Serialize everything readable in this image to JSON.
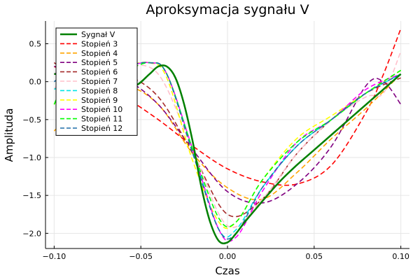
{
  "chart_data": {
    "type": "line",
    "title": "Aproksymacja sygnału V",
    "xlabel": "Czas",
    "ylabel": "Amplituda",
    "xlim": [
      -0.105,
      0.105
    ],
    "ylim": [
      -2.2,
      0.8
    ],
    "xticks": [
      -0.1,
      -0.05,
      0.0,
      0.05,
      0.1
    ],
    "xtick_labels": [
      "−0.10",
      "−0.05",
      "0.00",
      "0.05",
      "0.10"
    ],
    "yticks": [
      0.5,
      0.0,
      -0.5,
      -1.0,
      -1.5,
      -2.0
    ],
    "ytick_labels": [
      "0.5",
      "0.0",
      "−0.5",
      "−1.0",
      "−1.5",
      "−2.0"
    ],
    "grid": true,
    "legend_position": "top-left",
    "series": [
      {
        "name": "Sygnał V",
        "color": "#008000",
        "dash": "solid",
        "x": [
          -0.1,
          -0.09,
          -0.08,
          -0.07,
          -0.06,
          -0.053,
          -0.045,
          -0.04,
          -0.035,
          -0.03,
          -0.025,
          -0.02,
          -0.015,
          -0.01,
          -0.005,
          0.0,
          0.005,
          0.01,
          0.02,
          0.03,
          0.04,
          0.05,
          0.06,
          0.07,
          0.08,
          0.09,
          0.1
        ],
        "y": [
          0.1,
          0.12,
          0.1,
          0.05,
          0.0,
          -0.05,
          0.1,
          0.2,
          0.2,
          0.05,
          -0.3,
          -0.8,
          -1.4,
          -1.85,
          -2.1,
          -2.12,
          -2.0,
          -1.85,
          -1.58,
          -1.32,
          -1.1,
          -0.9,
          -0.7,
          -0.5,
          -0.3,
          -0.1,
          0.1
        ]
      },
      {
        "name": "Stopień 3",
        "color": "#ff0000",
        "dash": "dashed",
        "x": [
          -0.1,
          -0.08,
          -0.06,
          -0.04,
          -0.02,
          0.0,
          0.02,
          0.04,
          0.06,
          0.08,
          0.09,
          0.1
        ],
        "y": [
          0.2,
          0.0,
          -0.2,
          -0.5,
          -0.85,
          -1.15,
          -1.32,
          -1.35,
          -1.1,
          -0.4,
          0.1,
          0.7
        ]
      },
      {
        "name": "Stopień 4",
        "color": "#ffa500",
        "dash": "dashed",
        "x": [
          -0.1,
          -0.08,
          -0.06,
          -0.04,
          -0.02,
          0.0,
          0.02,
          0.04,
          0.06,
          0.08,
          0.1
        ],
        "y": [
          -0.65,
          -0.2,
          -0.05,
          -0.3,
          -0.95,
          -1.4,
          -1.55,
          -1.2,
          -0.75,
          -0.35,
          0.1
        ]
      },
      {
        "name": "Stopień 5",
        "color": "#800080",
        "dash": "dashed",
        "x": [
          -0.1,
          -0.08,
          -0.06,
          -0.04,
          -0.02,
          0.0,
          0.02,
          0.04,
          0.06,
          0.08,
          0.09,
          0.1
        ],
        "y": [
          0.2,
          0.2,
          0.05,
          -0.3,
          -0.9,
          -1.45,
          -1.6,
          -1.35,
          -0.85,
          -0.05,
          0.0,
          -0.3
        ]
      },
      {
        "name": "Stopień 6",
        "color": "#a52a2a",
        "dash": "dashed",
        "x": [
          -0.1,
          -0.09,
          -0.08,
          -0.06,
          -0.04,
          -0.02,
          0.0,
          0.02,
          0.04,
          0.06,
          0.08,
          0.1
        ],
        "y": [
          0.25,
          0.1,
          0.15,
          0.1,
          -0.2,
          -0.95,
          -1.75,
          -1.55,
          -0.95,
          -0.5,
          -0.15,
          0.05
        ]
      },
      {
        "name": "Stopień 7",
        "color": "#ffc0cb",
        "dash": "dashed",
        "x": [
          -0.1,
          -0.09,
          -0.08,
          -0.06,
          -0.04,
          -0.02,
          0.0,
          0.02,
          0.04,
          0.06,
          0.08,
          0.09,
          0.1
        ],
        "y": [
          -0.1,
          0.2,
          0.15,
          0.2,
          0.1,
          -0.9,
          -1.9,
          -1.55,
          -0.95,
          -0.5,
          -0.2,
          -0.15,
          0.4
        ]
      },
      {
        "name": "Stopień 8",
        "color": "#00e5e5",
        "dash": "dashed",
        "x": [
          -0.1,
          -0.09,
          -0.08,
          -0.06,
          -0.045,
          -0.035,
          -0.02,
          -0.005,
          0.005,
          0.02,
          0.04,
          0.06,
          0.08,
          0.1
        ],
        "y": [
          -0.1,
          0.0,
          0.15,
          0.2,
          0.25,
          0.1,
          -0.9,
          -1.95,
          -1.95,
          -1.4,
          -0.85,
          -0.5,
          -0.15,
          0.1
        ]
      },
      {
        "name": "Stopień 9",
        "color": "#ffff00",
        "dash": "dashed",
        "x": [
          -0.1,
          -0.09,
          -0.08,
          -0.06,
          -0.045,
          -0.035,
          -0.02,
          -0.005,
          0.005,
          0.02,
          0.04,
          0.06,
          0.08,
          0.1
        ],
        "y": [
          -0.3,
          0.1,
          0.1,
          0.2,
          0.25,
          0.05,
          -1.05,
          -1.85,
          -1.85,
          -1.3,
          -0.75,
          -0.45,
          -0.15,
          0.15
        ]
      },
      {
        "name": "Stopień 10",
        "color": "#ff00ff",
        "dash": "dashed",
        "x": [
          -0.1,
          -0.09,
          -0.08,
          -0.06,
          -0.045,
          -0.035,
          -0.02,
          -0.005,
          0.005,
          0.02,
          0.04,
          0.06,
          0.08,
          0.1
        ],
        "y": [
          0.1,
          0.2,
          0.15,
          0.2,
          0.25,
          0.1,
          -0.9,
          -1.95,
          -2.05,
          -1.45,
          -0.8,
          -0.5,
          -0.1,
          0.1
        ]
      },
      {
        "name": "Stopień 11",
        "color": "#00ff00",
        "dash": "dashed",
        "x": [
          -0.1,
          -0.09,
          -0.08,
          -0.06,
          -0.045,
          -0.035,
          -0.02,
          -0.005,
          0.005,
          0.02,
          0.04,
          0.06,
          0.08,
          0.1
        ],
        "y": [
          -0.3,
          0.2,
          0.1,
          0.15,
          0.25,
          0.1,
          -0.9,
          -1.8,
          -1.85,
          -1.3,
          -0.8,
          -0.5,
          -0.15,
          0.15
        ]
      },
      {
        "name": "Stopień 12",
        "color": "#1e6fa8",
        "dash": "dashed",
        "x": [
          -0.1,
          -0.09,
          -0.08,
          -0.06,
          -0.045,
          -0.035,
          -0.02,
          -0.005,
          0.005,
          0.02,
          0.04,
          0.06,
          0.08,
          0.1
        ],
        "y": [
          0.0,
          0.15,
          0.1,
          0.2,
          0.25,
          0.1,
          -0.95,
          -1.95,
          -2.0,
          -1.4,
          -0.85,
          -0.5,
          -0.15,
          0.1
        ]
      }
    ]
  }
}
